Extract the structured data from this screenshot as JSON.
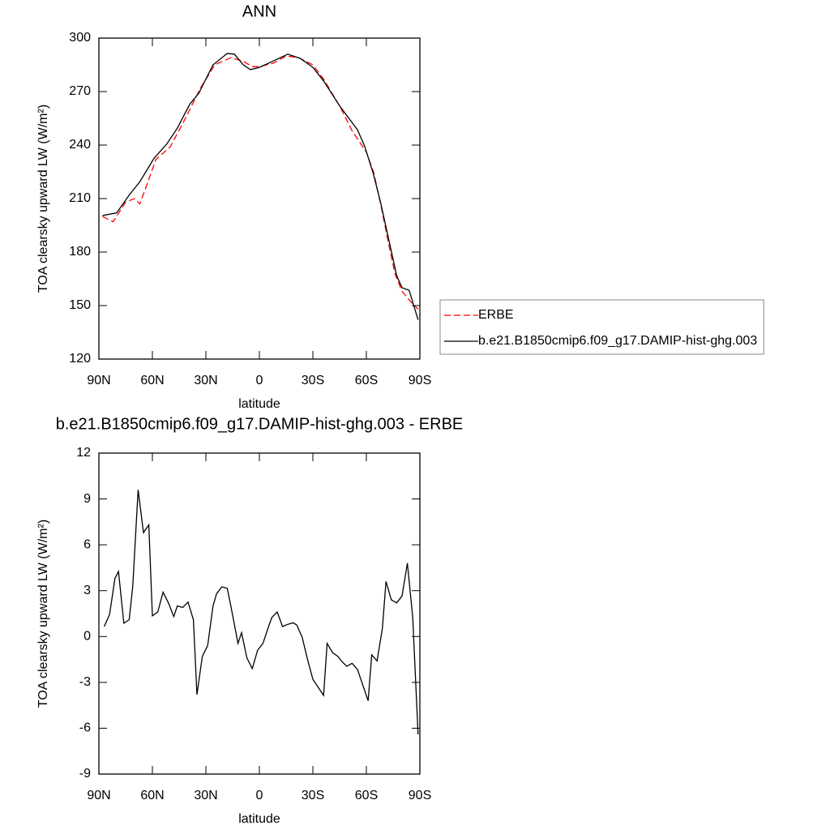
{
  "chart_data": [
    {
      "type": "line",
      "title": "ANN",
      "xlabel": "latitude",
      "ylabel": "TOA clearsky upward LW (W/m²)",
      "xlim": [
        90,
        -90
      ],
      "xticks": [
        {
          "value": 90,
          "label": "90N"
        },
        {
          "value": 60,
          "label": "60N"
        },
        {
          "value": 30,
          "label": "30N"
        },
        0,
        {
          "value": -30,
          "label": "30S"
        },
        {
          "value": -60,
          "label": "60S"
        },
        {
          "value": -90,
          "label": "90S"
        }
      ],
      "ylim": [
        120,
        300
      ],
      "yticks": [
        120,
        150,
        180,
        210,
        240,
        270,
        300
      ],
      "legend": "right",
      "series": [
        {
          "name": "ERBE",
          "color": "#ff0000",
          "dashed": true,
          "x": [
            88,
            82,
            75,
            70,
            67,
            63,
            58,
            50,
            42,
            33,
            25,
            16,
            9,
            4,
            0,
            -8,
            -15,
            -22,
            -30,
            -36,
            -45,
            -52,
            -60,
            -64,
            -68,
            -72,
            -76,
            -80,
            -85,
            -89
          ],
          "values": [
            200,
            197,
            208,
            210,
            207,
            218,
            232,
            239,
            254,
            272,
            285,
            289,
            287,
            284,
            284,
            286,
            290,
            289,
            285,
            277,
            262,
            248,
            236,
            225,
            207,
            187,
            168,
            158,
            152,
            148
          ]
        },
        {
          "name": "b.e21.B1850cmip6.f09_g17.DAMIP-hist-ghg.003",
          "color": "#000000",
          "dashed": false,
          "x": [
            88,
            80,
            73,
            67,
            59,
            52,
            46,
            39,
            34,
            26,
            18,
            14,
            9,
            5,
            0,
            -7,
            -16,
            -23,
            -30,
            -36,
            -45,
            -55,
            -59,
            -64,
            -68,
            -73,
            -77,
            -80,
            -84,
            -89
          ],
          "values": [
            200.5,
            202,
            212,
            219.5,
            232.7,
            240.5,
            249.5,
            263,
            269,
            285,
            291.4,
            291,
            285,
            282.3,
            283.6,
            286.8,
            291,
            288.6,
            283.6,
            276,
            262,
            248.6,
            239.5,
            223.6,
            207.7,
            185,
            166.8,
            160,
            158.6,
            142
          ]
        }
      ]
    },
    {
      "type": "line",
      "title": "b.e21.B1850cmip6.f09_g17.DAMIP-hist-ghg.003 - ERBE",
      "xlabel": "latitude",
      "ylabel": "TOA clearsky upward LW (W/m²)",
      "xlim": [
        90,
        -90
      ],
      "xticks": [
        {
          "value": 90,
          "label": "90N"
        },
        {
          "value": 60,
          "label": "60N"
        },
        {
          "value": 30,
          "label": "30N"
        },
        0,
        {
          "value": -30,
          "label": "30S"
        },
        {
          "value": -60,
          "label": "60S"
        },
        {
          "value": -90,
          "label": "90S"
        }
      ],
      "ylim": [
        -9,
        12
      ],
      "yticks": [
        -9,
        -6,
        -3,
        0,
        3,
        6,
        9,
        12
      ],
      "color": "#000000",
      "x": [
        87,
        84,
        81,
        79,
        76,
        73,
        71,
        68,
        65,
        62,
        60,
        57,
        54,
        51,
        48,
        46,
        43,
        40,
        37,
        35,
        32,
        29,
        26,
        24,
        21,
        18,
        16,
        12,
        10,
        7,
        4,
        1,
        -2,
        -5,
        -7,
        -10,
        -13,
        -16,
        -19,
        -21,
        -24,
        -27,
        -30,
        -36,
        -38,
        -41,
        -44,
        -46,
        -49,
        -52,
        -55,
        -61,
        -63,
        -66,
        -69,
        -71,
        -74,
        -77,
        -80,
        -83,
        -86,
        -89
      ],
      "values": [
        0.65,
        1.45,
        3.8,
        4.25,
        0.87,
        1.1,
        3.3,
        9.6,
        6.8,
        7.3,
        1.35,
        1.6,
        2.9,
        2.2,
        1.3,
        2.0,
        1.9,
        2.25,
        1.1,
        -3.8,
        -1.3,
        -0.6,
        2.0,
        2.8,
        3.25,
        3.15,
        2.0,
        -0.45,
        0.25,
        -1.4,
        -2.1,
        -0.9,
        -0.45,
        0.6,
        1.25,
        1.6,
        0.65,
        0.8,
        0.9,
        0.75,
        -0.05,
        -1.5,
        -2.8,
        -3.85,
        -0.45,
        -1.05,
        -1.3,
        -1.6,
        -1.95,
        -1.75,
        -2.15,
        -4.2,
        -1.2,
        -1.6,
        0.55,
        3.6,
        2.4,
        2.2,
        2.65,
        4.8,
        1.25,
        -6.4
      ]
    }
  ]
}
